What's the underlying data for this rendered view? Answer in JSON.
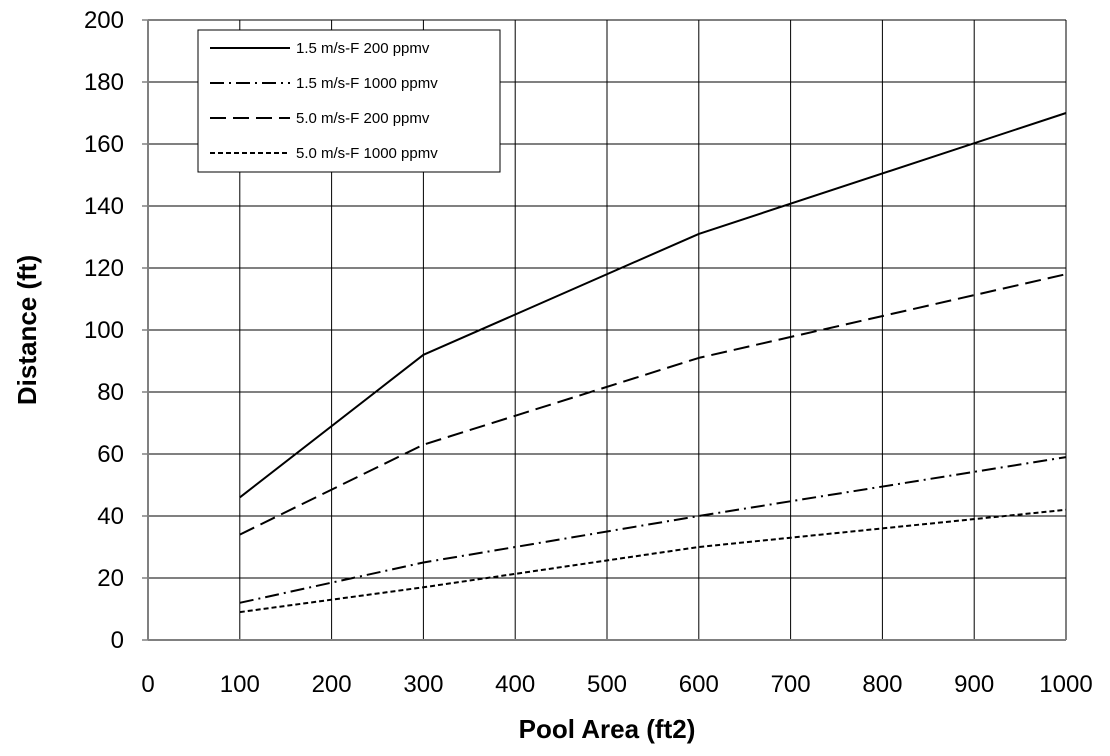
{
  "chart_data": {
    "type": "line",
    "title": "",
    "xlabel": "Pool Area (ft2)",
    "ylabel": "Distance (ft)",
    "xlim": [
      0,
      1000
    ],
    "ylim": [
      0,
      200
    ],
    "xticks": [
      0,
      100,
      200,
      300,
      400,
      500,
      600,
      700,
      800,
      900,
      1000
    ],
    "yticks": [
      0,
      20,
      40,
      60,
      80,
      100,
      120,
      140,
      160,
      180,
      200
    ],
    "grid": true,
    "legend_position": "top-left",
    "series": [
      {
        "name": "1.5 m/s-F 200 ppmv",
        "dash": "solid",
        "x": [
          100,
          300,
          600,
          1000
        ],
        "y": [
          46,
          92,
          131,
          170
        ]
      },
      {
        "name": "1.5 m/s-F 1000 ppmv",
        "dash": "dash-dot",
        "x": [
          100,
          300,
          600,
          1000
        ],
        "y": [
          12,
          25,
          40,
          59
        ]
      },
      {
        "name": "5.0 m/s-F 200 ppmv",
        "dash": "long-dash",
        "x": [
          100,
          300,
          600,
          1000
        ],
        "y": [
          34,
          63,
          91,
          118
        ]
      },
      {
        "name": "5.0 m/s-F 1000 ppmv",
        "dash": "short-dash",
        "x": [
          100,
          300,
          600,
          1000
        ],
        "y": [
          9,
          17,
          30,
          42
        ]
      }
    ]
  }
}
